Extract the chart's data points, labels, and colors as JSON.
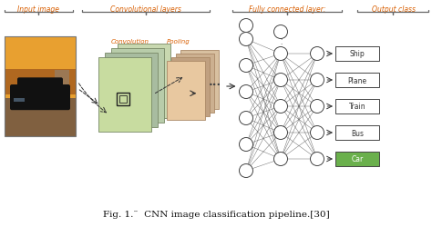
{
  "title": "Fig. 1.¨  CNN image classification pipeline.[30]",
  "bg_color": "#ffffff",
  "section_labels": [
    "Input image",
    "Convolutional layers",
    "Fully connected layer:",
    "Output class"
  ],
  "section_label_color": "#d95f02",
  "conv_label": "Convolution",
  "pool_label": "Pooling",
  "output_classes": [
    "Car",
    "Bus",
    "Train",
    "Plane",
    "Ship"
  ],
  "car_box_color": "#6ab04c",
  "other_box_color": "#ffffff",
  "box_edge_color": "#444444",
  "conv_stack_colors_back": [
    "#c8d8b0",
    "#b8ccaa",
    "#a8bca0"
  ],
  "conv_stack_color_front": "#c8dca0",
  "pool_stack_colors_back": [
    "#d8c0a0",
    "#ccb090",
    "#c0a080"
  ],
  "pool_stack_color_front": "#e8c8a0",
  "node_fc": "#ffffff",
  "node_ec": "#444444",
  "line_color": "#444444",
  "brace_color": "#666666",
  "arrow_color": "#333333",
  "dots_color": "#444444",
  "img_sky_color": "#e8a030",
  "img_road_color": "#806040",
  "img_car_color": "#1a1a1a",
  "img_bg_color": "#c87820"
}
